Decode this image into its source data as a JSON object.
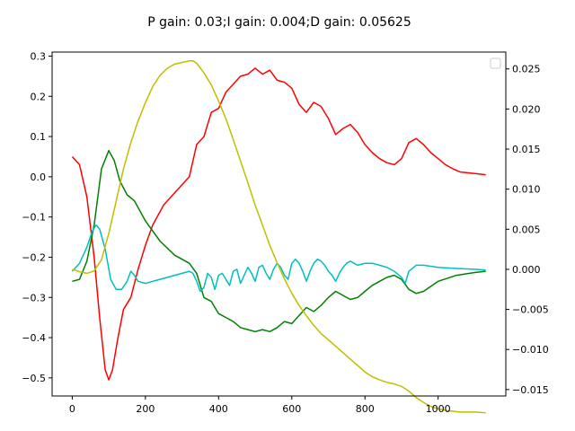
{
  "chart_data": {
    "type": "line",
    "title": "P gain: 0.03;I gain: 0.004;D gain: 0.05625",
    "xlabel": "",
    "ylabel": "",
    "y2label": "",
    "xlim": [
      -55,
      1185
    ],
    "ylim": [
      -0.545,
      0.31
    ],
    "y2lim": [
      -0.0158,
      0.0271
    ],
    "xticks": [
      0,
      200,
      400,
      600,
      800,
      1000
    ],
    "yticks": [
      -0.5,
      -0.4,
      -0.3,
      -0.2,
      -0.1,
      0.0,
      0.1,
      0.2,
      0.3
    ],
    "y2ticks": [
      -0.015,
      -0.01,
      -0.005,
      0.0,
      0.005,
      0.01,
      0.015,
      0.02,
      0.025
    ],
    "xtick_labels": [
      "0",
      "200",
      "400",
      "600",
      "800",
      "1000"
    ],
    "ytick_labels": [
      "−0.5",
      "−0.4",
      "−0.3",
      "−0.2",
      "−0.1",
      "0.0",
      "0.1",
      "0.2",
      "0.3"
    ],
    "y2tick_labels": [
      "−0.015",
      "−0.010",
      "−0.005",
      "0.000",
      "0.005",
      "0.010",
      "0.015",
      "0.020",
      "0.025"
    ],
    "grid": false,
    "legend": "upper-right (empty)",
    "series": [
      {
        "color": "#ff0000",
        "axis": "left",
        "x": [
          0,
          20,
          40,
          60,
          75,
          90,
          100,
          110,
          125,
          140,
          160,
          180,
          200,
          220,
          250,
          280,
          300,
          320,
          340,
          360,
          380,
          400,
          420,
          440,
          460,
          480,
          500,
          520,
          540,
          560,
          580,
          600,
          620,
          640,
          660,
          680,
          700,
          720,
          740,
          760,
          780,
          800,
          820,
          840,
          860,
          880,
          900,
          920,
          940,
          960,
          980,
          1000,
          1020,
          1040,
          1060,
          1080,
          1100,
          1130
        ],
        "values": [
          0.05,
          0.03,
          -0.05,
          -0.2,
          -0.35,
          -0.48,
          -0.505,
          -0.48,
          -0.4,
          -0.33,
          -0.3,
          -0.23,
          -0.17,
          -0.12,
          -0.07,
          -0.04,
          -0.02,
          0.0,
          0.08,
          0.1,
          0.16,
          0.17,
          0.21,
          0.23,
          0.25,
          0.255,
          0.27,
          0.255,
          0.265,
          0.24,
          0.235,
          0.22,
          0.18,
          0.16,
          0.185,
          0.175,
          0.145,
          0.105,
          0.12,
          0.13,
          0.11,
          0.08,
          0.06,
          0.045,
          0.035,
          0.03,
          0.045,
          0.085,
          0.095,
          0.08,
          0.06,
          0.045,
          0.03,
          0.02,
          0.012,
          0.01,
          0.008,
          0.005
        ]
      },
      {
        "color": "#008000",
        "axis": "left",
        "x": [
          0,
          20,
          40,
          60,
          80,
          100,
          115,
          130,
          150,
          170,
          200,
          240,
          280,
          320,
          340,
          360,
          380,
          400,
          420,
          440,
          460,
          480,
          500,
          520,
          540,
          560,
          580,
          600,
          620,
          640,
          660,
          680,
          700,
          720,
          740,
          760,
          780,
          800,
          820,
          840,
          860,
          880,
          900,
          920,
          940,
          960,
          1000,
          1050,
          1100,
          1130
        ],
        "values": [
          -0.26,
          -0.255,
          -0.21,
          -0.12,
          0.02,
          0.065,
          0.04,
          -0.01,
          -0.045,
          -0.06,
          -0.11,
          -0.16,
          -0.195,
          -0.215,
          -0.24,
          -0.3,
          -0.31,
          -0.34,
          -0.35,
          -0.36,
          -0.375,
          -0.38,
          -0.385,
          -0.38,
          -0.385,
          -0.375,
          -0.36,
          -0.365,
          -0.345,
          -0.325,
          -0.335,
          -0.32,
          -0.3,
          -0.285,
          -0.295,
          -0.305,
          -0.3,
          -0.285,
          -0.27,
          -0.26,
          -0.25,
          -0.245,
          -0.255,
          -0.28,
          -0.29,
          -0.285,
          -0.26,
          -0.245,
          -0.238,
          -0.235
        ]
      },
      {
        "color": "#00bfbf",
        "axis": "left",
        "x": [
          0,
          20,
          40,
          55,
          65,
          75,
          90,
          105,
          120,
          135,
          150,
          160,
          170,
          180,
          200,
          220,
          240,
          260,
          280,
          300,
          320,
          330,
          340,
          350,
          360,
          370,
          380,
          390,
          400,
          410,
          420,
          430,
          440,
          450,
          460,
          470,
          480,
          490,
          500,
          510,
          520,
          530,
          540,
          550,
          560,
          570,
          580,
          590,
          600,
          610,
          620,
          630,
          640,
          650,
          660,
          670,
          680,
          690,
          700,
          710,
          720,
          730,
          740,
          750,
          760,
          770,
          780,
          800,
          820,
          840,
          860,
          880,
          900,
          910,
          920,
          940,
          960,
          1000,
          1050,
          1100,
          1130
        ],
        "values": [
          -0.235,
          -0.215,
          -0.175,
          -0.135,
          -0.12,
          -0.13,
          -0.18,
          -0.255,
          -0.28,
          -0.28,
          -0.26,
          -0.235,
          -0.245,
          -0.26,
          -0.265,
          -0.26,
          -0.255,
          -0.25,
          -0.245,
          -0.24,
          -0.235,
          -0.24,
          -0.26,
          -0.285,
          -0.275,
          -0.24,
          -0.25,
          -0.28,
          -0.245,
          -0.24,
          -0.255,
          -0.27,
          -0.235,
          -0.23,
          -0.265,
          -0.245,
          -0.225,
          -0.24,
          -0.26,
          -0.225,
          -0.22,
          -0.24,
          -0.255,
          -0.23,
          -0.215,
          -0.225,
          -0.245,
          -0.255,
          -0.215,
          -0.205,
          -0.215,
          -0.235,
          -0.26,
          -0.235,
          -0.215,
          -0.205,
          -0.21,
          -0.22,
          -0.235,
          -0.245,
          -0.26,
          -0.24,
          -0.225,
          -0.215,
          -0.21,
          -0.215,
          -0.22,
          -0.215,
          -0.215,
          -0.22,
          -0.225,
          -0.235,
          -0.25,
          -0.265,
          -0.235,
          -0.22,
          -0.22,
          -0.225,
          -0.228,
          -0.23,
          -0.232
        ]
      },
      {
        "color": "#bfbf00",
        "axis": "right",
        "x": [
          0,
          20,
          40,
          60,
          80,
          100,
          120,
          140,
          160,
          180,
          200,
          220,
          240,
          260,
          280,
          300,
          320,
          330,
          340,
          360,
          380,
          400,
          420,
          440,
          460,
          480,
          500,
          520,
          540,
          560,
          580,
          600,
          620,
          640,
          660,
          680,
          700,
          720,
          740,
          760,
          780,
          800,
          820,
          840,
          860,
          880,
          900,
          920,
          940,
          960,
          980,
          1000,
          1020,
          1040,
          1060,
          1080,
          1100,
          1130
        ],
        "values": [
          0.0,
          -0.0003,
          -0.0005,
          -0.0002,
          0.0012,
          0.0045,
          0.0085,
          0.0125,
          0.0158,
          0.0185,
          0.0208,
          0.0228,
          0.0242,
          0.0251,
          0.0256,
          0.0258,
          0.026,
          0.026,
          0.0257,
          0.0245,
          0.023,
          0.021,
          0.0188,
          0.0162,
          0.0135,
          0.0108,
          0.008,
          0.0055,
          0.003,
          0.0008,
          -0.0012,
          -0.003,
          -0.0045,
          -0.0058,
          -0.007,
          -0.008,
          -0.0088,
          -0.0096,
          -0.0104,
          -0.0112,
          -0.012,
          -0.0128,
          -0.0134,
          -0.0138,
          -0.0141,
          -0.0143,
          -0.0146,
          -0.0152,
          -0.016,
          -0.0166,
          -0.0171,
          -0.0174,
          -0.0176,
          -0.0177,
          -0.0178,
          -0.0178,
          -0.0178,
          -0.0179
        ]
      }
    ]
  }
}
